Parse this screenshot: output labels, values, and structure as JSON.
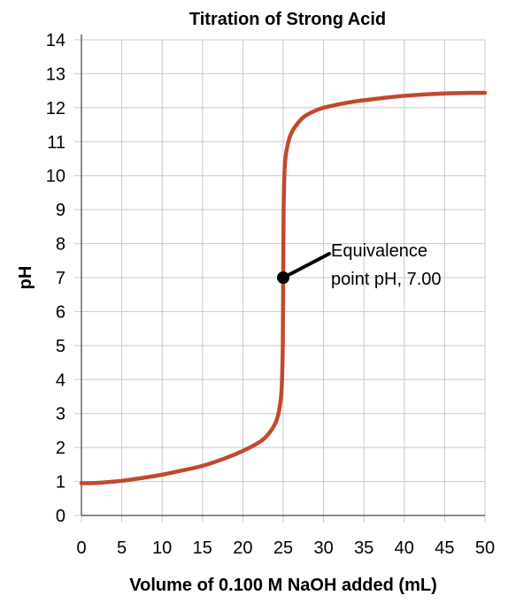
{
  "chart_data": {
    "type": "line",
    "title": "Titration of Strong Acid",
    "xlabel": "Volume of 0.100 M NaOH added (mL)",
    "ylabel": "pH",
    "xlim": [
      0,
      50
    ],
    "ylim": [
      0,
      14
    ],
    "xticks": [
      0,
      5,
      10,
      15,
      20,
      25,
      30,
      35,
      40,
      45,
      50
    ],
    "yticks": [
      0,
      1,
      2,
      3,
      4,
      5,
      6,
      7,
      8,
      9,
      10,
      11,
      12,
      13,
      14
    ],
    "grid": true,
    "legend": "none",
    "series": [
      {
        "color": "#c0492f",
        "points": [
          [
            0,
            0.95
          ],
          [
            2,
            0.96
          ],
          [
            5,
            1.02
          ],
          [
            8,
            1.12
          ],
          [
            10,
            1.2
          ],
          [
            12,
            1.3
          ],
          [
            15,
            1.46
          ],
          [
            18,
            1.7
          ],
          [
            20,
            1.9
          ],
          [
            22,
            2.15
          ],
          [
            23,
            2.35
          ],
          [
            24,
            2.7
          ],
          [
            24.5,
            3.1
          ],
          [
            24.8,
            3.7
          ],
          [
            24.95,
            5.0
          ],
          [
            25,
            7.0
          ],
          [
            25.05,
            9.0
          ],
          [
            25.2,
            10.3
          ],
          [
            25.5,
            10.85
          ],
          [
            26,
            11.25
          ],
          [
            27,
            11.6
          ],
          [
            28,
            11.8
          ],
          [
            30,
            12.0
          ],
          [
            33,
            12.15
          ],
          [
            35,
            12.22
          ],
          [
            40,
            12.35
          ],
          [
            45,
            12.42
          ],
          [
            50,
            12.44
          ]
        ]
      }
    ],
    "annotations": [
      {
        "x": 25,
        "y": 7.0,
        "marker": "point",
        "lines": [
          "Equivalence",
          "point pH, 7.00"
        ]
      }
    ],
    "colors": {
      "curve": "#c0492f",
      "grid": "#c8c8c8",
      "point": "#000000"
    }
  }
}
